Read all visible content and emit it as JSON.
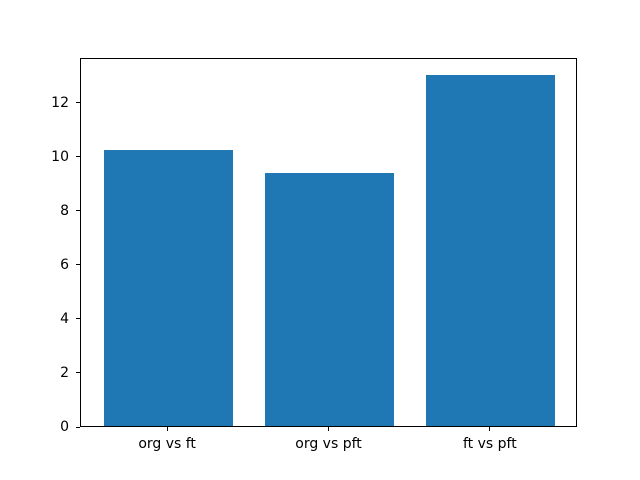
{
  "chart_data": {
    "type": "bar",
    "title": "",
    "xlabel": "",
    "ylabel": "",
    "categories": [
      "org vs ft",
      "org vs pft",
      "ft vs pft"
    ],
    "values": [
      10.2,
      9.35,
      13.0
    ],
    "yticks": [
      0,
      2,
      4,
      6,
      8,
      10,
      12
    ],
    "ylim": [
      0,
      13.65
    ],
    "xlim": [
      -0.54,
      2.54
    ],
    "bar_width": 0.8,
    "bar_color": "#1f77b4",
    "spine_color": "#000000",
    "tick_label_color": "#000000",
    "grid": false,
    "legend": "none"
  }
}
